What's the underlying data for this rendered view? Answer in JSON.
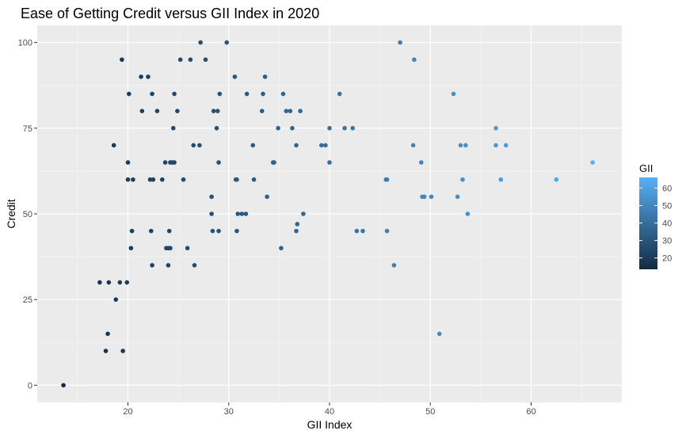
{
  "chart_data": {
    "type": "scatter",
    "title": "Ease of Getting Credit versus GII Index in 2020",
    "xlabel": "GII Index",
    "ylabel": "Credit",
    "xlim": [
      11,
      69
    ],
    "ylim": [
      -5,
      105
    ],
    "x_ticks": [
      20,
      30,
      40,
      50,
      60
    ],
    "x_minor_ticks": [
      15,
      25,
      35,
      45,
      55,
      65
    ],
    "y_ticks": [
      0,
      25,
      50,
      75,
      100
    ],
    "y_minor_ticks": [
      12.5,
      37.5,
      62.5,
      87.5
    ],
    "grid": true,
    "legend": {
      "title": "GII",
      "position": "right",
      "range": [
        13.5,
        66.1
      ],
      "ticks": [
        20,
        30,
        40,
        50,
        60
      ],
      "color_low": "#132B43",
      "color_high": "#56B1F7"
    },
    "points": [
      {
        "x": 13.6,
        "y": 0
      },
      {
        "x": 17.2,
        "y": 30
      },
      {
        "x": 17.8,
        "y": 10
      },
      {
        "x": 18.0,
        "y": 15
      },
      {
        "x": 18.1,
        "y": 30
      },
      {
        "x": 18.6,
        "y": 70
      },
      {
        "x": 18.8,
        "y": 25
      },
      {
        "x": 19.2,
        "y": 30
      },
      {
        "x": 19.4,
        "y": 95
      },
      {
        "x": 19.5,
        "y": 10
      },
      {
        "x": 19.9,
        "y": 30
      },
      {
        "x": 20.0,
        "y": 60
      },
      {
        "x": 20.0,
        "y": 65
      },
      {
        "x": 20.1,
        "y": 85
      },
      {
        "x": 20.3,
        "y": 40
      },
      {
        "x": 20.4,
        "y": 45
      },
      {
        "x": 20.5,
        "y": 60
      },
      {
        "x": 21.3,
        "y": 90
      },
      {
        "x": 21.4,
        "y": 80
      },
      {
        "x": 22.0,
        "y": 90
      },
      {
        "x": 22.2,
        "y": 60
      },
      {
        "x": 22.3,
        "y": 45
      },
      {
        "x": 22.4,
        "y": 35
      },
      {
        "x": 22.4,
        "y": 85
      },
      {
        "x": 22.5,
        "y": 60
      },
      {
        "x": 22.9,
        "y": 80
      },
      {
        "x": 23.4,
        "y": 60
      },
      {
        "x": 23.7,
        "y": 65
      },
      {
        "x": 23.8,
        "y": 40
      },
      {
        "x": 24.0,
        "y": 40
      },
      {
        "x": 24.0,
        "y": 35
      },
      {
        "x": 24.1,
        "y": 45
      },
      {
        "x": 24.2,
        "y": 40
      },
      {
        "x": 24.2,
        "y": 65
      },
      {
        "x": 24.4,
        "y": 65
      },
      {
        "x": 24.5,
        "y": 75
      },
      {
        "x": 24.6,
        "y": 85
      },
      {
        "x": 24.6,
        "y": 65
      },
      {
        "x": 24.9,
        "y": 80
      },
      {
        "x": 25.2,
        "y": 95
      },
      {
        "x": 25.5,
        "y": 60
      },
      {
        "x": 25.9,
        "y": 40
      },
      {
        "x": 26.2,
        "y": 95
      },
      {
        "x": 26.5,
        "y": 70
      },
      {
        "x": 26.6,
        "y": 35
      },
      {
        "x": 27.1,
        "y": 70
      },
      {
        "x": 27.2,
        "y": 100
      },
      {
        "x": 27.7,
        "y": 95
      },
      {
        "x": 28.3,
        "y": 55
      },
      {
        "x": 28.3,
        "y": 50
      },
      {
        "x": 28.4,
        "y": 45
      },
      {
        "x": 28.5,
        "y": 80
      },
      {
        "x": 28.8,
        "y": 75
      },
      {
        "x": 28.9,
        "y": 80
      },
      {
        "x": 29.0,
        "y": 65
      },
      {
        "x": 29.0,
        "y": 45
      },
      {
        "x": 29.1,
        "y": 85
      },
      {
        "x": 29.8,
        "y": 100
      },
      {
        "x": 30.6,
        "y": 90
      },
      {
        "x": 30.7,
        "y": 60
      },
      {
        "x": 30.8,
        "y": 60
      },
      {
        "x": 30.8,
        "y": 45
      },
      {
        "x": 30.9,
        "y": 50
      },
      {
        "x": 31.3,
        "y": 50
      },
      {
        "x": 31.7,
        "y": 50
      },
      {
        "x": 31.8,
        "y": 85
      },
      {
        "x": 32.4,
        "y": 70
      },
      {
        "x": 32.5,
        "y": 60
      },
      {
        "x": 33.3,
        "y": 80
      },
      {
        "x": 33.4,
        "y": 85
      },
      {
        "x": 33.6,
        "y": 90
      },
      {
        "x": 33.8,
        "y": 55
      },
      {
        "x": 34.4,
        "y": 65
      },
      {
        "x": 34.5,
        "y": 65
      },
      {
        "x": 34.9,
        "y": 75
      },
      {
        "x": 35.2,
        "y": 40
      },
      {
        "x": 35.4,
        "y": 85
      },
      {
        "x": 35.7,
        "y": 80
      },
      {
        "x": 36.1,
        "y": 80
      },
      {
        "x": 36.3,
        "y": 75
      },
      {
        "x": 36.7,
        "y": 70
      },
      {
        "x": 36.7,
        "y": 45
      },
      {
        "x": 36.8,
        "y": 47
      },
      {
        "x": 37.1,
        "y": 80
      },
      {
        "x": 37.4,
        "y": 50
      },
      {
        "x": 39.2,
        "y": 70
      },
      {
        "x": 39.6,
        "y": 70
      },
      {
        "x": 40.0,
        "y": 75
      },
      {
        "x": 40.0,
        "y": 65
      },
      {
        "x": 41.0,
        "y": 85
      },
      {
        "x": 41.5,
        "y": 75
      },
      {
        "x": 42.3,
        "y": 75
      },
      {
        "x": 42.7,
        "y": 45
      },
      {
        "x": 43.3,
        "y": 45
      },
      {
        "x": 45.6,
        "y": 60
      },
      {
        "x": 45.7,
        "y": 60
      },
      {
        "x": 45.7,
        "y": 45
      },
      {
        "x": 46.4,
        "y": 35
      },
      {
        "x": 47.0,
        "y": 100
      },
      {
        "x": 48.3,
        "y": 70
      },
      {
        "x": 48.4,
        "y": 95
      },
      {
        "x": 49.1,
        "y": 65
      },
      {
        "x": 49.2,
        "y": 55
      },
      {
        "x": 49.4,
        "y": 55
      },
      {
        "x": 50.1,
        "y": 55
      },
      {
        "x": 50.9,
        "y": 15
      },
      {
        "x": 52.3,
        "y": 85
      },
      {
        "x": 52.7,
        "y": 55
      },
      {
        "x": 53.0,
        "y": 70
      },
      {
        "x": 53.2,
        "y": 60
      },
      {
        "x": 53.5,
        "y": 70
      },
      {
        "x": 53.7,
        "y": 50
      },
      {
        "x": 56.5,
        "y": 75
      },
      {
        "x": 56.5,
        "y": 70
      },
      {
        "x": 57.0,
        "y": 60
      },
      {
        "x": 57.5,
        "y": 70
      },
      {
        "x": 62.5,
        "y": 60
      },
      {
        "x": 66.1,
        "y": 65
      }
    ]
  }
}
